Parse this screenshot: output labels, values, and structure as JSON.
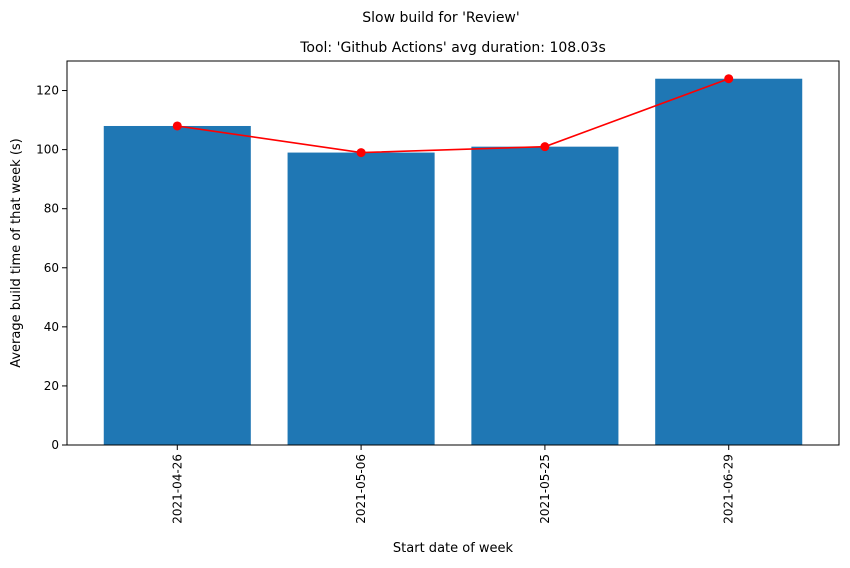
{
  "chart_data": {
    "type": "bar",
    "suptitle": "Slow build for 'Review'",
    "title": "Tool: 'Github Actions' avg duration: 108.03s",
    "xlabel": "Start date of week",
    "ylabel": "Average build time of that week (s)",
    "categories": [
      "2021-04-26",
      "2021-05-06",
      "2021-05-25",
      "2021-06-29"
    ],
    "values": [
      108,
      99,
      101,
      124
    ],
    "ylim": [
      0,
      130
    ],
    "yticks": [
      0,
      20,
      40,
      60,
      80,
      100,
      120
    ],
    "grid": false,
    "bar_color": "#1f77b4",
    "overlay_line": {
      "type": "line",
      "marker": "circle",
      "color": "#ff0000",
      "values": [
        108,
        99,
        101,
        124
      ]
    }
  }
}
